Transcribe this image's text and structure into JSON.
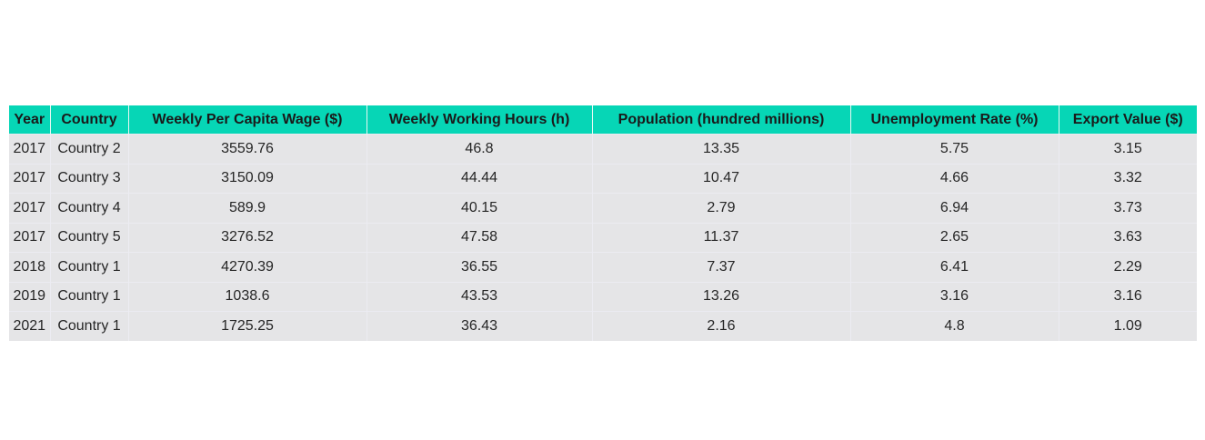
{
  "chart_data": {
    "type": "table",
    "columns": [
      "Year",
      "Country",
      "Weekly Per Capita Wage ($)",
      "Weekly Working Hours (h)",
      "Population (hundred millions)",
      "Unemployment Rate (%)",
      "Export Value ($)"
    ],
    "rows": [
      [
        "2017",
        "Country 2",
        "3559.76",
        "46.8",
        "13.35",
        "5.75",
        "3.15"
      ],
      [
        "2017",
        "Country 3",
        "3150.09",
        "44.44",
        "10.47",
        "4.66",
        "3.32"
      ],
      [
        "2017",
        "Country 4",
        "589.9",
        "40.15",
        "2.79",
        "6.94",
        "3.73"
      ],
      [
        "2017",
        "Country 5",
        "3276.52",
        "47.58",
        "11.37",
        "2.65",
        "3.63"
      ],
      [
        "2018",
        "Country 1",
        "4270.39",
        "36.55",
        "7.37",
        "6.41",
        "2.29"
      ],
      [
        "2019",
        "Country 1",
        "1038.6",
        "43.53",
        "13.26",
        "3.16",
        "3.16"
      ],
      [
        "2021",
        "Country 1",
        "1725.25",
        "36.43",
        "2.16",
        "4.8",
        "1.09"
      ]
    ],
    "header_color": "#06d6b6",
    "cell_color": "#e5e5e7"
  }
}
